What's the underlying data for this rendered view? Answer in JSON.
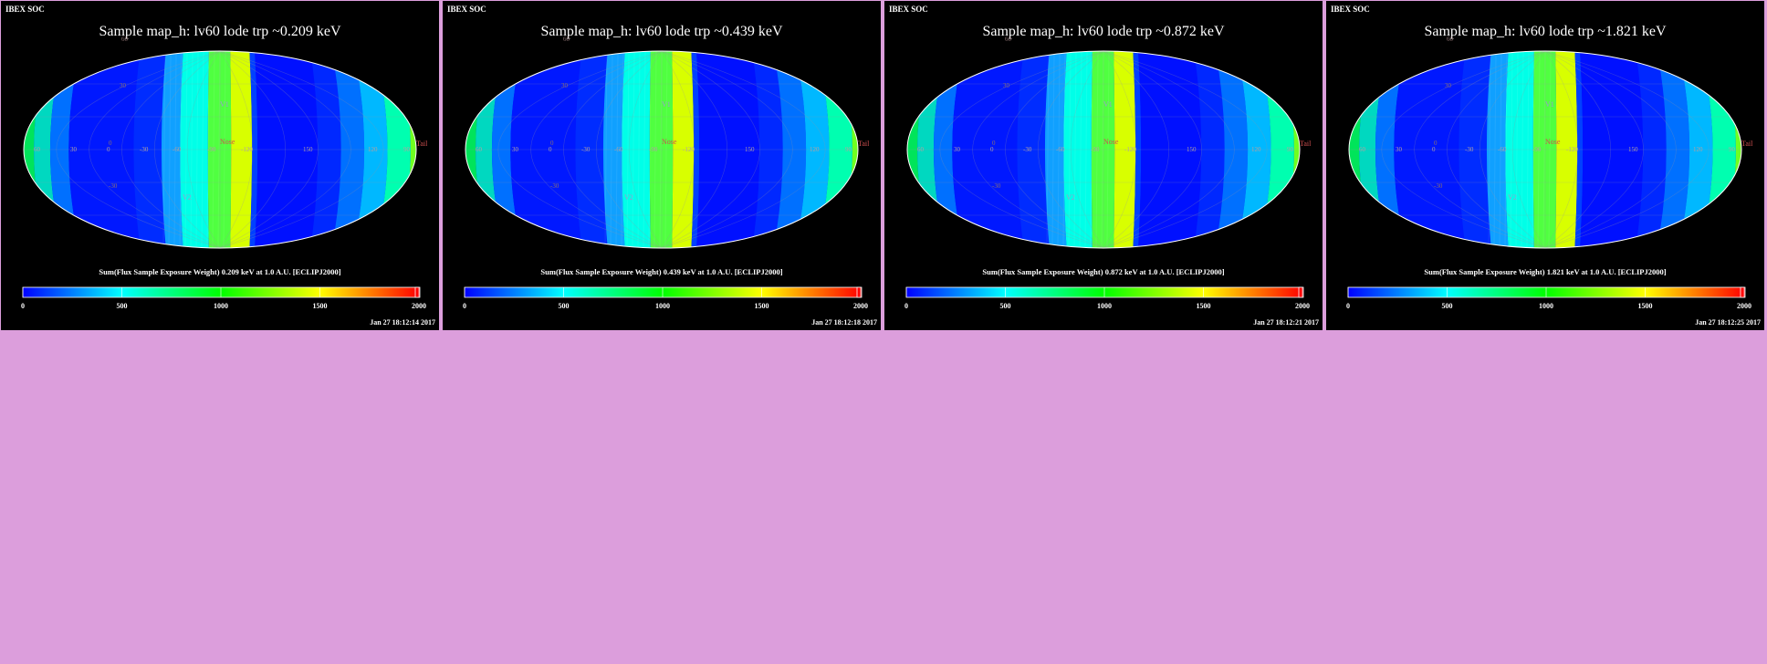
{
  "layout_color": "#dc9edc",
  "panels": [
    {
      "soc_label": "IBEX SOC",
      "title": "Sample map_h: lv60 lode trp ~0.209 keV",
      "caption": "Sum(Flux Sample Exposure Weight)  0.209 keV at 1.0 A.U. [ECLIPJ2000]",
      "timestamp": "Jan 27 18:12:14 2017"
    },
    {
      "soc_label": "IBEX SOC",
      "title": "Sample map_h: lv60 lode trp ~0.439 keV",
      "caption": "Sum(Flux Sample Exposure Weight)  0.439 keV at 1.0 A.U. [ECLIPJ2000]",
      "timestamp": "Jan 27 18:12:18 2017"
    },
    {
      "soc_label": "IBEX SOC",
      "title": "Sample map_h: lv60 lode trp ~0.872 keV",
      "caption": "Sum(Flux Sample Exposure Weight)  0.872 keV at 1.0 A.U. [ECLIPJ2000]",
      "timestamp": "Jan 27 18:12:21 2017"
    },
    {
      "soc_label": "IBEX SOC",
      "title": "Sample map_h: lv60 lode trp ~1.821 keV",
      "caption": "Sum(Flux Sample Exposure Weight)  1.821 keV at 1.0 A.U. [ECLIPJ2000]",
      "timestamp": "Jan 27 18:12:25 2017"
    }
  ],
  "colorbar": {
    "ticks": [
      "0",
      "500",
      "1000",
      "1500",
      "2000"
    ],
    "range": [
      0,
      2000
    ],
    "colors": [
      "#0000ff",
      "#00ffff",
      "#00ff00",
      "#ffff00",
      "#ff0000"
    ]
  },
  "map": {
    "lat_labels": [
      "60",
      "30",
      "0",
      "-30"
    ],
    "lon_labels": [
      "60",
      "30",
      "0",
      "-30",
      "-60",
      "-90",
      "-120",
      "150",
      "120",
      "90"
    ],
    "markers": {
      "v1": "V1",
      "v2": "V2",
      "nose": "Nose",
      "tail": "Tail"
    },
    "exposure_bands": [
      {
        "color": "#00e45a"
      },
      {
        "color": "#00d8c0"
      },
      {
        "color": "#0070ff"
      },
      {
        "color": "#0018ff"
      },
      {
        "color": "#002cff"
      },
      {
        "color": "#10a0ff"
      },
      {
        "color": "#00ffe8"
      },
      {
        "color": "#50ff40"
      },
      {
        "color": "#d8ff00"
      },
      {
        "color": "#0040ff"
      },
      {
        "color": "#0010ff"
      },
      {
        "color": "#0028ff"
      },
      {
        "color": "#0070ff"
      },
      {
        "color": "#00b8ff"
      },
      {
        "color": "#00ffb0"
      },
      {
        "color": "#70ff20"
      }
    ]
  }
}
